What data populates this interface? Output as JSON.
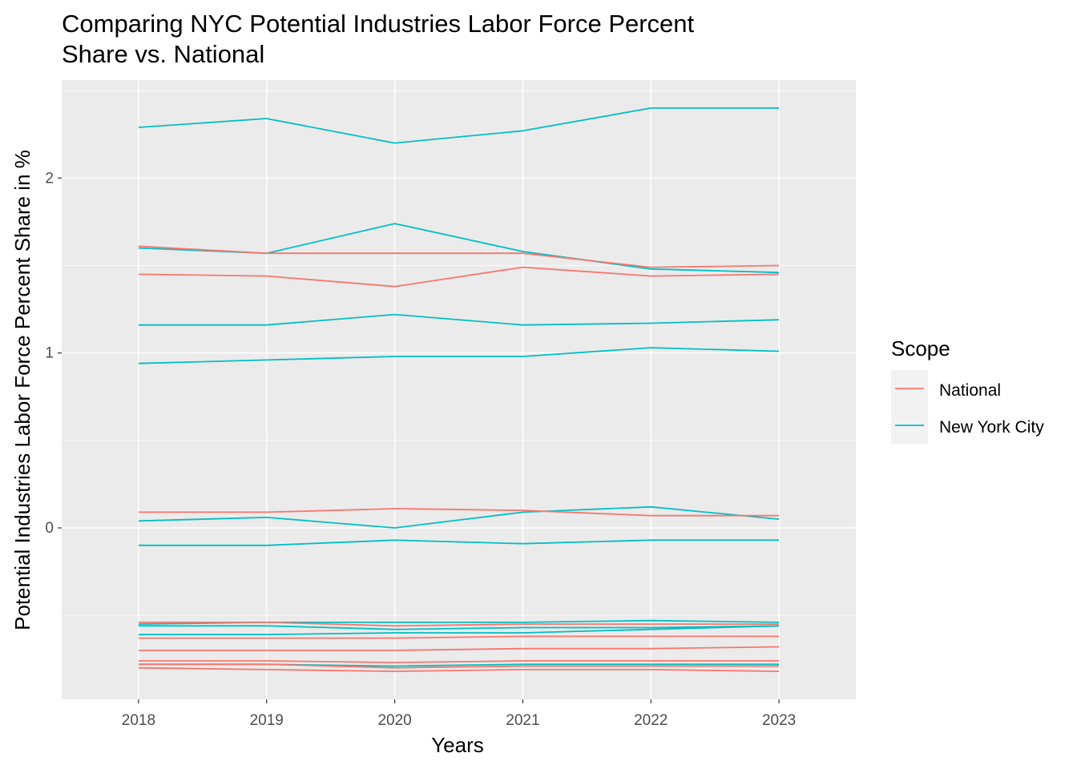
{
  "chart_data": {
    "type": "line",
    "title_lines": [
      "Comparing NYC Potential Industries Labor Force Percent",
      "Share vs. National"
    ],
    "xlabel": "Years",
    "ylabel": "Potential Industries Labor Force Percent Share in %",
    "x": [
      2018,
      2019,
      2020,
      2021,
      2022,
      2023
    ],
    "x_ticks": [
      "2018",
      "2019",
      "2020",
      "2021",
      "2022",
      "2023"
    ],
    "xlim": [
      2017.4,
      2023.6
    ],
    "y_ticks": [
      0,
      1,
      2
    ],
    "y_tick_labels": [
      "0",
      "1",
      "2"
    ],
    "ylim": [
      -0.98,
      2.56
    ],
    "grid": true,
    "legend": {
      "title": "Scope",
      "position": "right",
      "entries": [
        {
          "label": "National",
          "color": "#F8766D"
        },
        {
          "label": "New York City",
          "color": "#00BFC4"
        }
      ]
    },
    "series": [
      {
        "scope": "New York City",
        "color": "#00BFC4",
        "values": [
          2.29,
          2.34,
          2.2,
          2.27,
          2.4,
          2.4
        ]
      },
      {
        "scope": "New York City",
        "color": "#00BFC4",
        "values": [
          1.6,
          1.57,
          1.74,
          1.58,
          1.48,
          1.46
        ]
      },
      {
        "scope": "New York City",
        "color": "#00BFC4",
        "values": [
          1.16,
          1.16,
          1.22,
          1.16,
          1.17,
          1.19
        ]
      },
      {
        "scope": "New York City",
        "color": "#00BFC4",
        "values": [
          0.94,
          0.96,
          0.98,
          0.98,
          1.03,
          1.01
        ]
      },
      {
        "scope": "New York City",
        "color": "#00BFC4",
        "values": [
          0.04,
          0.06,
          0.0,
          0.09,
          0.12,
          0.05
        ]
      },
      {
        "scope": "New York City",
        "color": "#00BFC4",
        "values": [
          -0.1,
          -0.1,
          -0.07,
          -0.09,
          -0.07,
          -0.07
        ]
      },
      {
        "scope": "New York City",
        "color": "#00BFC4",
        "values": [
          -0.55,
          -0.54,
          -0.54,
          -0.54,
          -0.53,
          -0.54
        ]
      },
      {
        "scope": "New York City",
        "color": "#00BFC4",
        "values": [
          -0.56,
          -0.56,
          -0.58,
          -0.57,
          -0.57,
          -0.56
        ]
      },
      {
        "scope": "New York City",
        "color": "#00BFC4",
        "values": [
          -0.61,
          -0.61,
          -0.6,
          -0.6,
          -0.58,
          -0.56
        ]
      },
      {
        "scope": "New York City",
        "color": "#00BFC4",
        "values": [
          -0.78,
          -0.78,
          -0.79,
          -0.78,
          -0.78,
          -0.78
        ]
      },
      {
        "scope": "National",
        "color": "#F8766D",
        "values": [
          1.61,
          1.57,
          1.57,
          1.57,
          1.49,
          1.5
        ]
      },
      {
        "scope": "National",
        "color": "#F8766D",
        "values": [
          1.45,
          1.44,
          1.38,
          1.49,
          1.44,
          1.45
        ]
      },
      {
        "scope": "National",
        "color": "#F8766D",
        "values": [
          0.09,
          0.09,
          0.11,
          0.1,
          0.07,
          0.07
        ]
      },
      {
        "scope": "National",
        "color": "#F8766D",
        "values": [
          -0.54,
          -0.54,
          -0.56,
          -0.55,
          -0.55,
          -0.55
        ]
      },
      {
        "scope": "National",
        "color": "#F8766D",
        "values": [
          -0.63,
          -0.63,
          -0.63,
          -0.62,
          -0.62,
          -0.62
        ]
      },
      {
        "scope": "National",
        "color": "#F8766D",
        "values": [
          -0.7,
          -0.7,
          -0.7,
          -0.69,
          -0.69,
          -0.68
        ]
      },
      {
        "scope": "National",
        "color": "#F8766D",
        "values": [
          -0.76,
          -0.76,
          -0.77,
          -0.76,
          -0.76,
          -0.76
        ]
      },
      {
        "scope": "National",
        "color": "#F8766D",
        "values": [
          -0.78,
          -0.78,
          -0.8,
          -0.79,
          -0.79,
          -0.79
        ]
      },
      {
        "scope": "National",
        "color": "#F8766D",
        "values": [
          -0.8,
          -0.81,
          -0.82,
          -0.81,
          -0.81,
          -0.82
        ]
      }
    ]
  }
}
